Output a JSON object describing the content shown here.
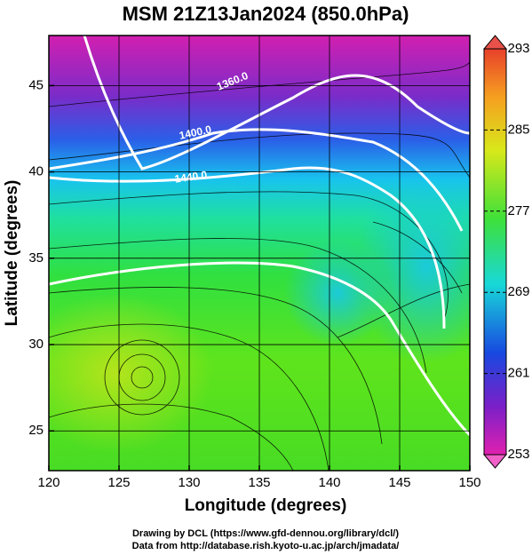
{
  "chart_data": {
    "type": "map",
    "title": "MSM 21Z13Jan2024 (850.0hPa)",
    "x_label": "Longitude (degrees)",
    "y_label": "Latitude  (degrees)",
    "xlim": [
      120,
      150
    ],
    "xticks": [
      120,
      125,
      130,
      135,
      140,
      145,
      150
    ],
    "ylim": [
      22.7,
      47.9
    ],
    "yticks": [
      25,
      30,
      35,
      40,
      45
    ],
    "grid": true,
    "colorbar": {
      "lim": [
        253,
        293
      ],
      "ticks": [
        253,
        261,
        269,
        277,
        285,
        293
      ]
    },
    "annotations": [
      "1360.0",
      "1400.0",
      "1440.0"
    ],
    "footer": [
      "Drawing by DCL (https://www.gfd-dennou.org/library/dcl/)",
      "Data from http://database.rish.kyoto-u.ac.jp/arch/jmadata/"
    ]
  }
}
